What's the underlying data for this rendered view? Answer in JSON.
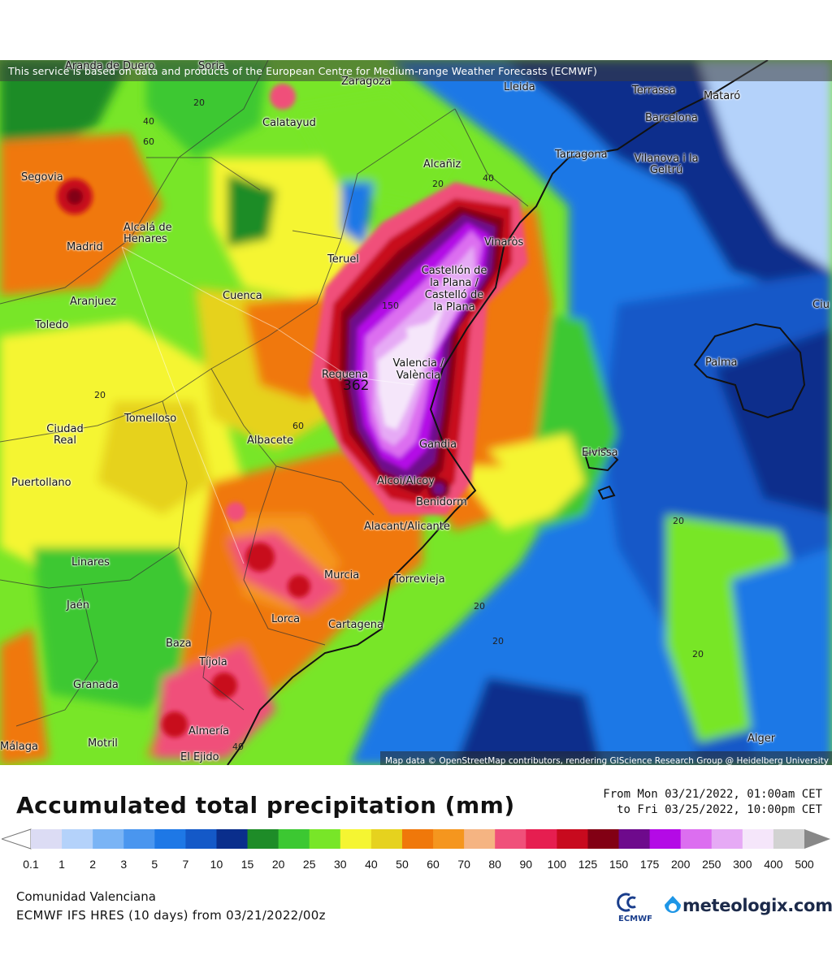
{
  "attribution_top": "This service is based on data and products of the European Centre for Medium-range Weather Forecasts (ECMWF)",
  "attribution_bottom": "Map data © OpenStreetMap contributors, rendering GIScience Research Group @ Heidelberg University",
  "title": "Accumulated total precipitation (mm)",
  "date_from": "From Mon 03/21/2022, 01:00am CET",
  "date_to": "to Fri 03/25/2022, 10:00pm CET",
  "region": "Comunidad Valenciana",
  "model": "ECMWF IFS HRES (10 days) from 03/21/2022/00z",
  "ecmwf_logo": "ECMWF",
  "brand": "meteologix.com",
  "max_value_label": "362",
  "legend": {
    "labels": [
      "0.1",
      "1",
      "2",
      "3",
      "5",
      "7",
      "10",
      "15",
      "20",
      "25",
      "30",
      "40",
      "50",
      "60",
      "70",
      "80",
      "90",
      "100",
      "125",
      "150",
      "175",
      "200",
      "250",
      "300",
      "400",
      "500"
    ],
    "colors": [
      "#dcdcf4",
      "#b4d2fa",
      "#7ab4f5",
      "#4a96ef",
      "#1e78e6",
      "#1459c8",
      "#0a2e8c",
      "#1e8c28",
      "#3cc832",
      "#78e628",
      "#f5f532",
      "#e6d21e",
      "#f0780a",
      "#f5961e",
      "#f5b482",
      "#f0507a",
      "#e61e50",
      "#c80a1e",
      "#820014",
      "#6e0a8c",
      "#b40ae6",
      "#dc6ef0",
      "#e6aaf5",
      "#f5e6fa",
      "#d2d2d2"
    ],
    "over_color": "#888888"
  },
  "isoline_labels": [
    "20",
    "40",
    "60",
    "20",
    "40",
    "20",
    "60",
    "20",
    "20",
    "20",
    "20",
    "40",
    "150"
  ],
  "cities": [
    {
      "name": "Aranda de Duero"
    },
    {
      "name": "Soria"
    },
    {
      "name": "Zaragoza"
    },
    {
      "name": "Lleida"
    },
    {
      "name": "Terrassa"
    },
    {
      "name": "Mataró"
    },
    {
      "name": "Barcelona"
    },
    {
      "name": "Calatayud"
    },
    {
      "name": "Tarragona"
    },
    {
      "name": "Vilanova i la Geltrú"
    },
    {
      "name": "Alcañiz"
    },
    {
      "name": "Segovia"
    },
    {
      "name": "Alcalá de Henares"
    },
    {
      "name": "Madrid"
    },
    {
      "name": "Teruel"
    },
    {
      "name": "Vinaròs"
    },
    {
      "name": "Castellón de la Plana / Castelló de la Plana"
    },
    {
      "name": "Cuenca"
    },
    {
      "name": "Aranjuez"
    },
    {
      "name": "Toledo"
    },
    {
      "name": "Requena"
    },
    {
      "name": "Valencia / València"
    },
    {
      "name": "Palma"
    },
    {
      "name": "Tomelloso"
    },
    {
      "name": "Ciudad Real"
    },
    {
      "name": "Albacete"
    },
    {
      "name": "Gandia"
    },
    {
      "name": "Eivissa"
    },
    {
      "name": "Puertollano"
    },
    {
      "name": "Alcoi/Alcoy"
    },
    {
      "name": "Benidorm"
    },
    {
      "name": "Alacant/Alicante"
    },
    {
      "name": "Linares"
    },
    {
      "name": "Murcia"
    },
    {
      "name": "Torrevieja"
    },
    {
      "name": "Jaén"
    },
    {
      "name": "Lorca"
    },
    {
      "name": "Cartagena"
    },
    {
      "name": "Baza"
    },
    {
      "name": "Tíjola"
    },
    {
      "name": "Granada"
    },
    {
      "name": "Almería"
    },
    {
      "name": "Motril"
    },
    {
      "name": "El Ejido"
    },
    {
      "name": "Málaga"
    },
    {
      "name": "Alger"
    },
    {
      "name": "Ciu"
    }
  ]
}
